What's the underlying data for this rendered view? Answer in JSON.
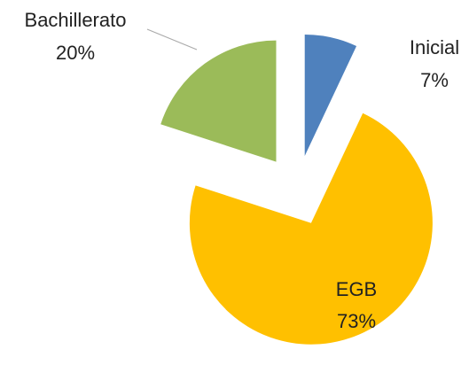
{
  "chart_data": {
    "type": "pie",
    "categories": [
      "Inicial",
      "EGB",
      "Bachillerato"
    ],
    "values": [
      7,
      73,
      20
    ],
    "value_labels": [
      "7%",
      "73%",
      "20%"
    ],
    "colors": [
      "#4f81bd",
      "#ffc000",
      "#9bbb59"
    ]
  }
}
